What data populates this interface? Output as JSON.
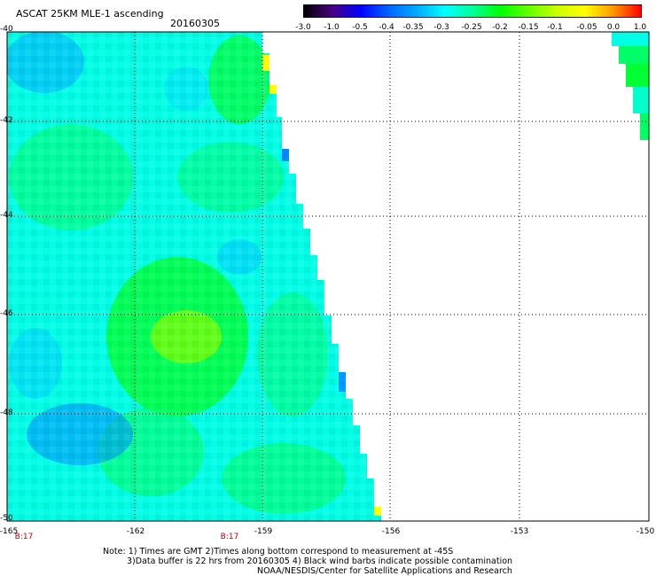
{
  "header": {
    "title": "ASCAT 25KM MLE-1 ascending",
    "date": "20160305"
  },
  "colorbar": {
    "labels": [
      "-3.0",
      "-1.0",
      "-0.5",
      "-0.4",
      "-0.35",
      "-0.3",
      "-0.25",
      "-0.2",
      "-0.15",
      "-0.1",
      "-0.05",
      "0.0",
      "1.0"
    ],
    "colors": [
      "#000000",
      "#4b0082",
      "#0000ff",
      "#0066ff",
      "#00aaff",
      "#00ffff",
      "#00ff99",
      "#00ff00",
      "#66ff00",
      "#ccff00",
      "#ffff00",
      "#ff9900",
      "#ff0000"
    ]
  },
  "axes": {
    "y_labels": [
      "-40",
      "-42",
      "-44",
      "-46",
      "-48",
      "-50"
    ],
    "x_labels": [
      "-165",
      "-162",
      "-159",
      "-156",
      "-153",
      "-150"
    ],
    "bottom_markers": [
      "B:17",
      "B:17"
    ]
  },
  "notes": {
    "line1": "Note: 1) Times are GMT 2)Times along bottom correspond to measurement at -45S",
    "line2": "3)Data buffer is 22 hrs from 20160305 4) Black wind barbs indicate possible contamination",
    "line3": "NOAA/NESDIS/Center for Satellite Applications and Research"
  }
}
